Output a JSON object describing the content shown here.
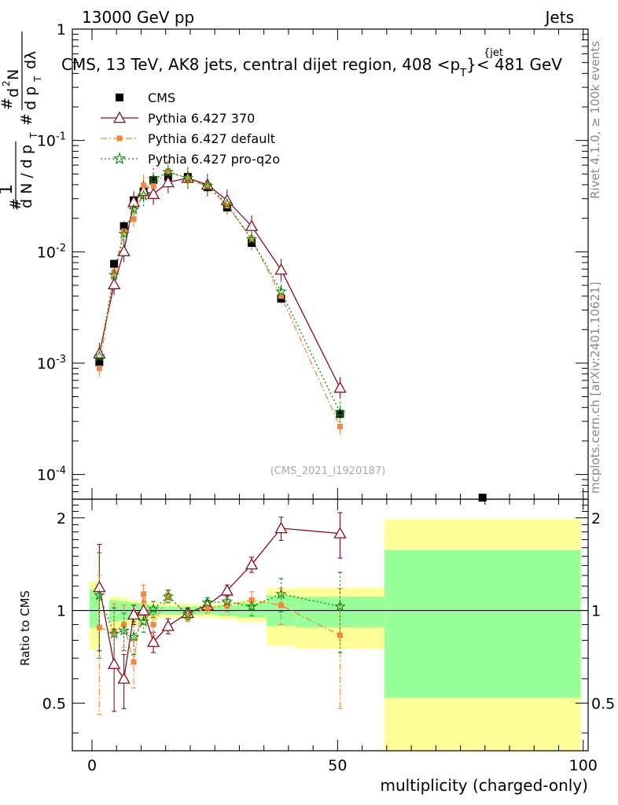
{
  "header": {
    "left": "13000 GeV pp",
    "right": "Jets",
    "subtitle": "CMS, 13 TeV, AK8 jets, central dijet region, 408 <p",
    "subtitle_sub": "T",
    "subtitle_sup": "{jet",
    "subtitle_end": "}< 481 GeV",
    "watermark": "(CMS_2021_I1920187)"
  },
  "side_text": {
    "rivet": "Rivet 4.1.0, ≥ 100k events",
    "mcplots": "mcplots.cern.ch [arXiv:2401.10621]"
  },
  "axes": {
    "ylabel_top": "#  1/dN / dp_T  #  d²N/dp_T dλ",
    "ylabel_ratio": "Ratio to CMS",
    "xlabel": "multiplicity (charged-only)"
  },
  "chart_data": {
    "type": "scatter",
    "title": "CMS, 13 TeV, AK8 jets, central dijet region, 408 < pT < 481 GeV",
    "xlabel": "multiplicity (charged-only)",
    "ylabel": "1/dN/dpT d2N/dpT dlambda",
    "xlim": [
      -4,
      101
    ],
    "ylim": [
      6e-05,
      1
    ],
    "yscale": "log",
    "ratio_ylim": [
      0.35,
      2.3
    ],
    "x_ticks": [
      "0",
      "50",
      "100"
    ],
    "y_ticks": [
      "10^-4",
      "10^-3",
      "10^-2",
      "10^-1",
      "1"
    ],
    "ratio_ticks": [
      "0.5",
      "1",
      "2"
    ],
    "data": {
      "name": "CMS",
      "x": [
        1.5,
        4.5,
        6.5,
        8.5,
        10.5,
        12.5,
        15.5,
        19.5,
        23.5,
        27.5,
        32.5,
        38.5,
        50.5,
        79.5
      ],
      "y": [
        0.00102,
        0.0078,
        0.017,
        0.029,
        0.035,
        0.044,
        0.047,
        0.047,
        0.038,
        0.025,
        0.012,
        0.0038,
        0.00035,
        6.2e-05
      ]
    },
    "bands": [
      {
        "x0": -0.5,
        "x1": 1.5,
        "inner": [
          0.88,
          1.17
        ],
        "outer": [
          0.75,
          1.24
        ]
      },
      {
        "x0": 3.5,
        "x1": 5.5,
        "inner": [
          0.92,
          1.08
        ],
        "outer": [
          0.86,
          1.11
        ]
      },
      {
        "x0": 5.5,
        "x1": 7.5,
        "inner": [
          0.93,
          1.07
        ],
        "outer": [
          0.88,
          1.1
        ]
      },
      {
        "x0": 7.5,
        "x1": 9.5,
        "inner": [
          0.94,
          1.06
        ],
        "outer": [
          0.9,
          1.08
        ]
      },
      {
        "x0": 9.5,
        "x1": 11.5,
        "inner": [
          0.95,
          1.05
        ],
        "outer": [
          0.92,
          1.07
        ]
      },
      {
        "x0": 11.5,
        "x1": 13.5,
        "inner": [
          0.96,
          1.04
        ],
        "outer": [
          0.93,
          1.06
        ]
      },
      {
        "x0": 13.5,
        "x1": 17.5,
        "inner": [
          0.97,
          1.03
        ],
        "outer": [
          0.95,
          1.05
        ]
      },
      {
        "x0": 17.5,
        "x1": 21.5,
        "inner": [
          0.97,
          1.03
        ],
        "outer": [
          0.95,
          1.05
        ]
      },
      {
        "x0": 21.5,
        "x1": 25.5,
        "inner": [
          0.97,
          1.03
        ],
        "outer": [
          0.95,
          1.05
        ]
      },
      {
        "x0": 25.5,
        "x1": 29.5,
        "inner": [
          0.96,
          1.04
        ],
        "outer": [
          0.94,
          1.06
        ]
      },
      {
        "x0": 29.5,
        "x1": 35.5,
        "inner": [
          0.95,
          1.06
        ],
        "outer": [
          0.92,
          1.08
        ]
      },
      {
        "x0": 35.5,
        "x1": 41.5,
        "inner": [
          0.89,
          1.12
        ],
        "outer": [
          0.77,
          1.18
        ]
      },
      {
        "x0": 41.5,
        "x1": 59.5,
        "inner": [
          0.88,
          1.11
        ],
        "outer": [
          0.75,
          1.19
        ]
      },
      {
        "x0": 59.5,
        "x1": 99.5,
        "inner": [
          0.52,
          1.57
        ],
        "outer": [
          0.3,
          1.98
        ]
      }
    ],
    "series": [
      {
        "name": "Pythia 6.427 370",
        "color": "#8b0a1e",
        "marker": "triangle",
        "dash": "",
        "x": [
          1.5,
          4.5,
          6.5,
          8.5,
          10.5,
          12.5,
          15.5,
          19.5,
          23.5,
          27.5,
          32.5,
          38.5,
          50.5
        ],
        "y": [
          0.00122,
          0.0051,
          0.0101,
          0.028,
          0.035,
          0.033,
          0.042,
          0.046,
          0.04,
          0.029,
          0.017,
          0.0069,
          0.0006
        ],
        "ratio": [
          1.19,
          0.67,
          0.6,
          0.97,
          1.0,
          0.79,
          0.89,
          0.98,
          1.04,
          1.16,
          1.41,
          1.85,
          1.78
        ],
        "ratio_err": [
          0.45,
          0.2,
          0.12,
          0.07,
          0.07,
          0.06,
          0.05,
          0.04,
          0.04,
          0.05,
          0.08,
          0.16,
          0.3
        ]
      },
      {
        "name": "Pythia 6.427 default",
        "color": "#f5873b",
        "marker": "square",
        "dash": "8,3,2,3",
        "x": [
          1.5,
          4.5,
          6.5,
          8.5,
          10.5,
          12.5,
          15.5,
          19.5,
          23.5,
          27.5,
          32.5,
          38.5,
          50.5
        ],
        "y": [
          0.0009,
          0.0066,
          0.0153,
          0.0197,
          0.0395,
          0.039,
          0.053,
          0.045,
          0.039,
          0.026,
          0.013,
          0.004,
          0.00027
        ],
        "ratio": [
          0.88,
          0.85,
          0.9,
          0.68,
          1.13,
          0.9,
          1.12,
          0.96,
          1.02,
          1.04,
          1.08,
          1.04,
          0.83
        ],
        "ratio_err": [
          0.42,
          0.2,
          0.14,
          0.12,
          0.08,
          0.07,
          0.05,
          0.04,
          0.04,
          0.05,
          0.07,
          0.14,
          0.35
        ]
      },
      {
        "name": "Pythia 6.427 pro-q2o",
        "color": "#0a8a0a",
        "marker": "star",
        "dash": "2,3",
        "x": [
          1.5,
          4.5,
          6.5,
          8.5,
          10.5,
          12.5,
          15.5,
          19.5,
          23.5,
          27.5,
          32.5,
          38.5,
          50.5
        ],
        "y": [
          0.00115,
          0.0062,
          0.0145,
          0.024,
          0.032,
          0.045,
          0.052,
          0.046,
          0.039,
          0.027,
          0.013,
          0.0044,
          0.00036
        ],
        "ratio": [
          1.12,
          0.84,
          0.86,
          0.82,
          0.92,
          1.01,
          1.11,
          0.97,
          1.06,
          1.07,
          1.03,
          1.13,
          1.03
        ],
        "ratio_err": [
          0.42,
          0.18,
          0.12,
          0.1,
          0.07,
          0.06,
          0.05,
          0.04,
          0.04,
          0.05,
          0.07,
          0.14,
          0.3
        ]
      }
    ],
    "legend": [
      "CMS",
      "Pythia 6.427 370",
      "Pythia 6.427 default",
      "Pythia 6.427 pro-q2o"
    ]
  }
}
